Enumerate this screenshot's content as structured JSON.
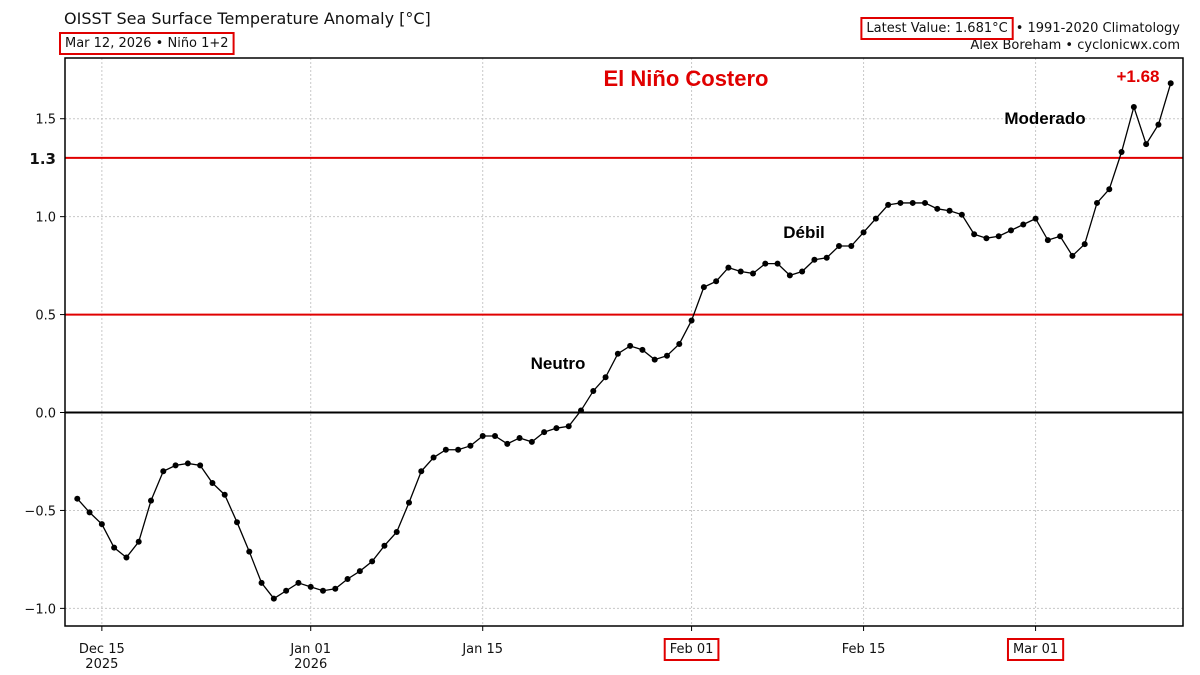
{
  "chart_data": {
    "type": "line",
    "title": "OISST Sea Surface Temperature Anomaly [°C]",
    "subtitle": "Mar 12, 2026 • Niño 1+2",
    "latest_value": "Latest Value: 1.681°C",
    "climatology": "• 1991-2020 Climatology",
    "credit": "Alex Boreham • cyclonicwx.com",
    "annotations": [
      "El Niño Costero",
      "Neutro",
      "Débil",
      "Moderado",
      "+1.68"
    ],
    "x": [
      "2025-12-13",
      "2025-12-14",
      "2025-12-15",
      "2025-12-16",
      "2025-12-17",
      "2025-12-18",
      "2025-12-19",
      "2025-12-20",
      "2025-12-21",
      "2025-12-22",
      "2025-12-23",
      "2025-12-24",
      "2025-12-25",
      "2025-12-26",
      "2025-12-27",
      "2025-12-28",
      "2025-12-29",
      "2025-12-30",
      "2025-12-31",
      "2026-01-01",
      "2026-01-02",
      "2026-01-03",
      "2026-01-04",
      "2026-01-05",
      "2026-01-06",
      "2026-01-07",
      "2026-01-08",
      "2026-01-09",
      "2026-01-10",
      "2026-01-11",
      "2026-01-12",
      "2026-01-13",
      "2026-01-14",
      "2026-01-15",
      "2026-01-16",
      "2026-01-17",
      "2026-01-18",
      "2026-01-19",
      "2026-01-20",
      "2026-01-21",
      "2026-01-22",
      "2026-01-23",
      "2026-01-24",
      "2026-01-25",
      "2026-01-26",
      "2026-01-27",
      "2026-01-28",
      "2026-01-29",
      "2026-01-30",
      "2026-01-31",
      "2026-02-01",
      "2026-02-02",
      "2026-02-03",
      "2026-02-04",
      "2026-02-05",
      "2026-02-06",
      "2026-02-07",
      "2026-02-08",
      "2026-02-09",
      "2026-02-10",
      "2026-02-11",
      "2026-02-12",
      "2026-02-13",
      "2026-02-14",
      "2026-02-15",
      "2026-02-16",
      "2026-02-17",
      "2026-02-18",
      "2026-02-19",
      "2026-02-20",
      "2026-02-21",
      "2026-02-22",
      "2026-02-23",
      "2026-02-24",
      "2026-02-25",
      "2026-02-26",
      "2026-02-27",
      "2026-02-28",
      "2026-03-01",
      "2026-03-02",
      "2026-03-03",
      "2026-03-04",
      "2026-03-05",
      "2026-03-06",
      "2026-03-07",
      "2026-03-08",
      "2026-03-09",
      "2026-03-10",
      "2026-03-11",
      "2026-03-12"
    ],
    "series": [
      {
        "name": "Niño 1+2",
        "color": "#000000",
        "values": [
          -0.44,
          -0.51,
          -0.57,
          -0.69,
          -0.74,
          -0.66,
          -0.45,
          -0.3,
          -0.27,
          -0.26,
          -0.27,
          -0.36,
          -0.42,
          -0.56,
          -0.71,
          -0.87,
          -0.95,
          -0.91,
          -0.87,
          -0.89,
          -0.91,
          -0.9,
          -0.85,
          -0.81,
          -0.76,
          -0.68,
          -0.61,
          -0.46,
          -0.3,
          -0.23,
          -0.19,
          -0.19,
          -0.17,
          -0.12,
          -0.12,
          -0.16,
          -0.13,
          -0.15,
          -0.1,
          -0.08,
          -0.07,
          0.01,
          0.11,
          0.18,
          0.3,
          0.34,
          0.32,
          0.27,
          0.29,
          0.35,
          0.47,
          0.64,
          0.67,
          0.74,
          0.72,
          0.71,
          0.76,
          0.76,
          0.7,
          0.72,
          0.78,
          0.79,
          0.85,
          0.85,
          0.92,
          0.99,
          1.06,
          1.07,
          1.07,
          1.07,
          1.04,
          1.03,
          1.01,
          0.91,
          0.89,
          0.9,
          0.93,
          0.96,
          0.99,
          0.88,
          0.9,
          0.8,
          0.86,
          1.07,
          1.14,
          1.33,
          1.56,
          1.37,
          1.47,
          1.681
        ]
      }
    ],
    "xlim": [
      "2025-12-12",
      "2026-03-13"
    ],
    "xticks": [
      {
        "value": "2025-12-15",
        "label": "Dec 15\n2025"
      },
      {
        "value": "2026-01-01",
        "label": "Jan 01\n2026"
      },
      {
        "value": "2026-01-15",
        "label": "Jan 15"
      },
      {
        "value": "2026-02-01",
        "label": "Feb 01",
        "highlight": true
      },
      {
        "value": "2026-02-15",
        "label": "Feb 15"
      },
      {
        "value": "2026-03-01",
        "label": "Mar 01",
        "highlight": true
      }
    ],
    "ylim": [
      -1.09,
      1.81
    ],
    "yticks": [
      {
        "value": -1,
        "label": "−1.0"
      },
      {
        "value": -0.5,
        "label": "−0.5"
      },
      {
        "value": 0,
        "label": "0.0"
      },
      {
        "value": 0.5,
        "label": "0.5"
      },
      {
        "value": 1,
        "label": "1.0"
      },
      {
        "value": 1.5,
        "label": "1.5"
      }
    ],
    "hlines": [
      {
        "value": 0,
        "color": "#000000"
      },
      {
        "value": 0.5,
        "color": "#e00000"
      },
      {
        "value": 1.3,
        "color": "#e00000",
        "label": "1.3"
      }
    ],
    "grid": true,
    "highlight_color": "#e00000"
  }
}
